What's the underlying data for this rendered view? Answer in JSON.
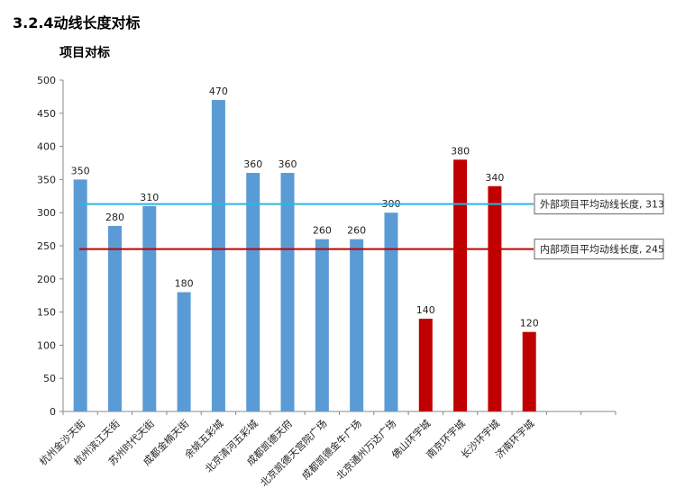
{
  "header": {
    "title": "3.2.4动线长度对标",
    "subtitle": "项目对标"
  },
  "chart_data": {
    "type": "bar",
    "ylim": [
      0,
      500
    ],
    "yticks": [
      0,
      50,
      100,
      150,
      200,
      250,
      300,
      350,
      400,
      450,
      500
    ],
    "categories": [
      "杭州金沙天街",
      "杭州滨江天街",
      "苏州时代天街",
      "成都金楠天街",
      "余姚五彩城",
      "北京清河五彩城",
      "成都凯德天府",
      "北京凯德天宫院广场",
      "成都凯德金牛广场",
      "北京通州万达广场",
      "佛山环宇城",
      "南京环宇城",
      "长沙环宇城",
      "济南环宇城"
    ],
    "values": [
      350,
      280,
      310,
      180,
      470,
      360,
      360,
      260,
      260,
      300,
      140,
      380,
      340,
      120
    ],
    "bar_colors": [
      "#5b9bd5",
      "#5b9bd5",
      "#5b9bd5",
      "#5b9bd5",
      "#5b9bd5",
      "#5b9bd5",
      "#5b9bd5",
      "#5b9bd5",
      "#5b9bd5",
      "#5b9bd5",
      "#c00000",
      "#c00000",
      "#c00000",
      "#c00000"
    ],
    "empty_slots_after": 2,
    "reference_lines": [
      {
        "label": "外部项目平均动线长度, 313",
        "value": 313,
        "color": "#2eb4e0"
      },
      {
        "label": "内部项目平均动线长度, 245",
        "value": 245,
        "color": "#c00000"
      }
    ],
    "grid": false,
    "legend": "none"
  }
}
